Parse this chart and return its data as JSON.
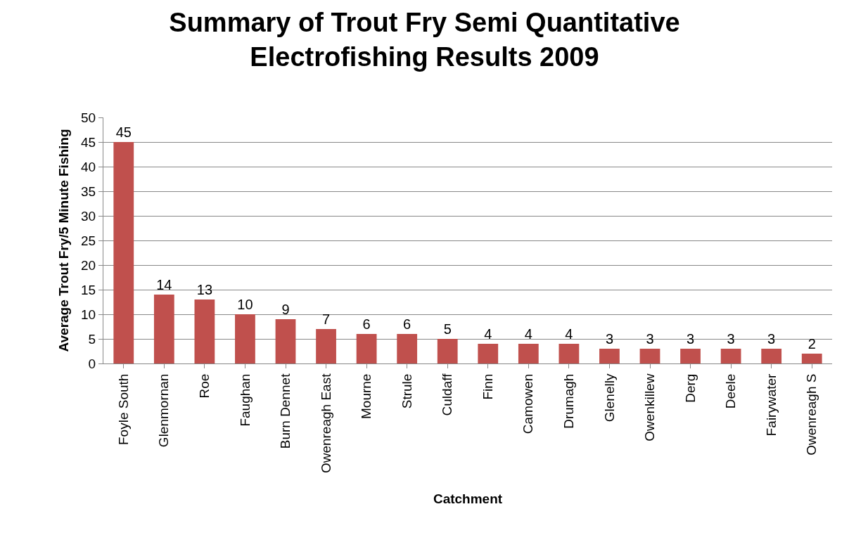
{
  "chart_data": {
    "type": "bar",
    "title": "Summary of Trout Fry Semi Quantitative Electrofishing Results 2009",
    "xlabel": "Catchment",
    "ylabel": "Average Trout Fry/5 Minute Fishing",
    "categories": [
      "Foyle South",
      "Glenmornan",
      "Roe",
      "Faughan",
      "Burn Dennet",
      "Owenreagh East",
      "Mourne",
      "Strule",
      "Culdaff",
      "Finn",
      "Camowen",
      "Drumagh",
      "Glenelly",
      "Owenkillew",
      "Derg",
      "Deele",
      "Fairywater",
      "Owenreagh S"
    ],
    "values": [
      45,
      14,
      13,
      10,
      9,
      7,
      6,
      6,
      5,
      4,
      4,
      4,
      3,
      3,
      3,
      3,
      3,
      2
    ],
    "color": "#c0504d",
    "ylim": [
      0,
      50
    ],
    "yticks": [
      0,
      5,
      10,
      15,
      20,
      25,
      30,
      35,
      40,
      45,
      50
    ],
    "grid": "y",
    "data_labels": true
  }
}
